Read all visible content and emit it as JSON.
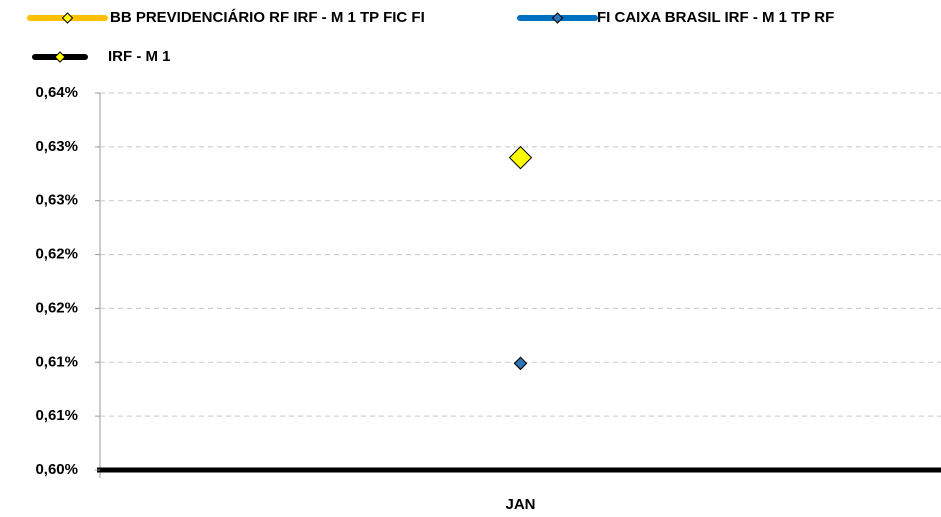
{
  "chart_data": {
    "type": "line",
    "categories": [
      "JAN"
    ],
    "series": [
      {
        "name": "BB PREVIDENCIÁRIO RF IRF - M 1 TP FIC FI",
        "color": "#ffc000",
        "marker_color": "#ffff00",
        "values": [
          0.6099
        ]
      },
      {
        "name": "FI CAIXA BRASIL IRF - M 1 TP RF",
        "color": "#0070c0",
        "marker_color": "#2e75b6",
        "values": [
          0.6099
        ]
      },
      {
        "name": "IRF - M 1",
        "color": "#000000",
        "marker_color": "#ffff00",
        "values": [
          0.629
        ]
      }
    ],
    "ylim": [
      0.6,
      0.635
    ],
    "yticks": [
      {
        "value": 0.6,
        "label": "0,60%"
      },
      {
        "value": 0.605,
        "label": "0,61%"
      },
      {
        "value": 0.61,
        "label": "0,61%"
      },
      {
        "value": 0.615,
        "label": "0,62%"
      },
      {
        "value": 0.62,
        "label": "0,62%"
      },
      {
        "value": 0.625,
        "label": "0,63%"
      },
      {
        "value": 0.63,
        "label": "0,63%"
      },
      {
        "value": 0.635,
        "label": "0,64%"
      }
    ],
    "grid": true
  }
}
